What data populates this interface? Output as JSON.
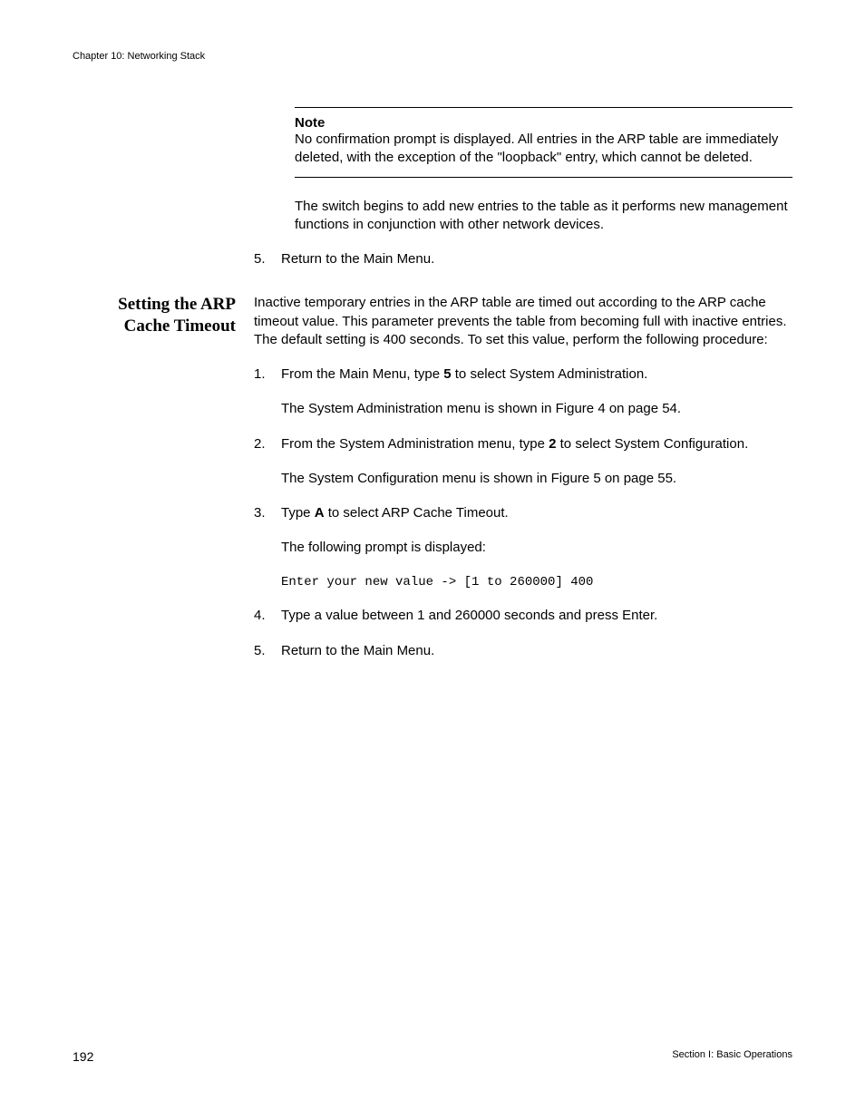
{
  "header": {
    "chapter": "Chapter 10: Networking Stack"
  },
  "note": {
    "title": "Note",
    "body": "No confirmation prompt is displayed. All entries in the ARP table are immediately deleted, with the exception of the \"loopback\" entry, which cannot be deleted."
  },
  "top": {
    "para": "The switch begins to add new entries to the table as it performs new management functions in conjunction with other network devices.",
    "step5_num": "5.",
    "step5_text": "Return to the Main Menu."
  },
  "section": {
    "title_line1": "Setting the ARP",
    "title_line2": "Cache Timeout",
    "intro": "Inactive temporary entries in the ARP table are timed out according to the ARP cache timeout value. This parameter prevents the table from becoming full with inactive entries. The default setting is 400 seconds. To set this value, perform the following procedure:",
    "s1_num": "1.",
    "s1_a": "From the Main Menu, type ",
    "s1_bold": "5",
    "s1_b": " to select System Administration.",
    "s1_sub": "The System Administration menu is shown in Figure 4 on page 54.",
    "s2_num": "2.",
    "s2_a": "From the System Administration menu, type ",
    "s2_bold": "2",
    "s2_b": " to select System Configuration.",
    "s2_sub": "The System Configuration menu is shown in Figure 5 on page 55.",
    "s3_num": "3.",
    "s3_a": "Type ",
    "s3_bold": "A",
    "s3_b": " to select ARP Cache Timeout.",
    "s3_sub": "The following prompt is displayed:",
    "s3_code": "Enter your new value -> [1 to 260000] 400",
    "s4_num": "4.",
    "s4_text": "Type a value between 1 and 260000 seconds and press Enter.",
    "s5_num": "5.",
    "s5_text": "Return to the Main Menu."
  },
  "footer": {
    "page": "192",
    "section": "Section I: Basic Operations"
  }
}
